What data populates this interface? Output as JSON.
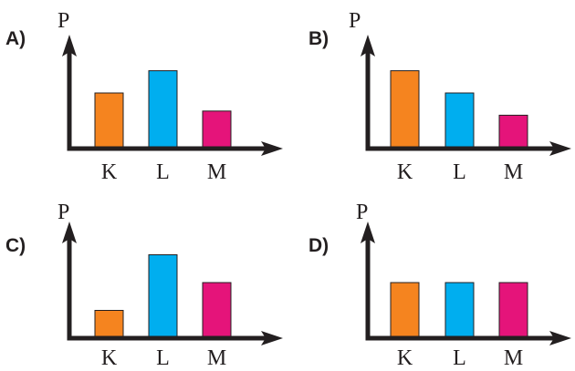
{
  "chart_data": [
    {
      "type": "bar",
      "option_label": "A)",
      "ylabel": "P",
      "categories": [
        "K",
        "L",
        "M"
      ],
      "values": [
        2,
        2.8,
        1.35
      ],
      "ylim": [
        0,
        3.5
      ],
      "colors": [
        "#f5841f",
        "#00aeef",
        "#e5147a"
      ]
    },
    {
      "type": "bar",
      "option_label": "B)",
      "ylabel": "P",
      "categories": [
        "K",
        "L",
        "M"
      ],
      "values": [
        2.8,
        2,
        1.2
      ],
      "ylim": [
        0,
        3.5
      ],
      "colors": [
        "#f5841f",
        "#00aeef",
        "#e5147a"
      ]
    },
    {
      "type": "bar",
      "option_label": "C)",
      "ylabel": "P",
      "categories": [
        "K",
        "L",
        "M"
      ],
      "values": [
        1,
        3,
        2
      ],
      "ylim": [
        0,
        3.5
      ],
      "colors": [
        "#f5841f",
        "#00aeef",
        "#e5147a"
      ]
    },
    {
      "type": "bar",
      "option_label": "D)",
      "ylabel": "P",
      "categories": [
        "K",
        "L",
        "M"
      ],
      "values": [
        2,
        2,
        2
      ],
      "ylim": [
        0,
        3.5
      ],
      "colors": [
        "#f5841f",
        "#00aeef",
        "#e5147a"
      ]
    }
  ]
}
